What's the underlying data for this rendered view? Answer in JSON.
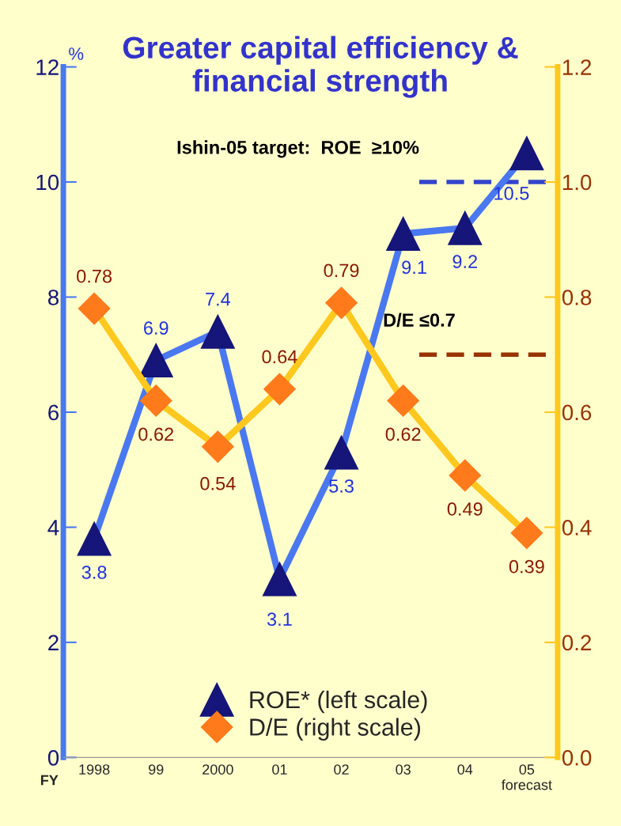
{
  "chart_data": {
    "type": "line",
    "title": "Greater capital efficiency &\nfinancial strength",
    "ylabel": "%",
    "xlabel": "FY",
    "categories": [
      "1998",
      "99",
      "2000",
      "01",
      "02",
      "03",
      "04",
      "05\nforecast"
    ],
    "series": [
      {
        "name": "ROE* (left scale)",
        "color": "#4a78f0",
        "colors": [
          "#15157a",
          "#15157a",
          "#15157a",
          "#15157a",
          "#15157a",
          "#15157a",
          "#15157a",
          "#15157a"
        ],
        "marker": "triangle",
        "values": [
          3.8,
          6.9,
          7.4,
          3.1,
          5.3,
          9.1,
          9.2,
          10.5
        ],
        "value_labels": [
          "3.8",
          "6.9",
          "7.4",
          "3.1",
          "5.3",
          "9.1",
          "9.2",
          "10.5"
        ]
      },
      {
        "name": "D/E (right scale)",
        "axis": "y2",
        "color": "#ffc81e",
        "colors": [
          "#ff7a1a",
          "#ff7a1a",
          "#ff7a1a",
          "#ff7a1a",
          "#ff7a1a",
          "#ff7a1a",
          "#ff7a1a",
          "#ff7a1a"
        ],
        "marker": "diamond",
        "values": [
          0.78,
          0.62,
          0.54,
          0.64,
          0.79,
          0.62,
          0.49,
          0.39
        ],
        "value_labels": [
          "0.78",
          "0.62",
          "0.54",
          "0.64",
          "0.79",
          "0.62",
          "0.49",
          "0.39"
        ]
      }
    ],
    "ylim": [
      0,
      12
    ],
    "yticks": [
      0,
      2,
      4,
      6,
      8,
      10,
      12
    ],
    "y2lim": [
      0,
      1.2
    ],
    "y2ticks": [
      {
        "value": 0,
        "label": "0.0"
      },
      {
        "value": 0.2,
        "label": "0.2"
      },
      {
        "value": 0.4,
        "label": "0.4"
      },
      {
        "value": 0.6,
        "label": "0.6"
      },
      {
        "value": 0.8,
        "label": "0.8"
      },
      {
        "value": 1.0,
        "label": "1.0"
      },
      {
        "value": 1.2,
        "label": "1.2"
      }
    ],
    "ref_lines": [
      {
        "axis": "y",
        "value": 10,
        "label": "Ishin-05 target:  ROE  ≥10%",
        "color": "#3344cc",
        "line_style": "dashed"
      },
      {
        "axis": "y2",
        "value": 0.7,
        "label": "D/E ≤0.7",
        "color": "#993300",
        "line_style": "dashed"
      }
    ],
    "grid": false,
    "legend": "bottom"
  }
}
